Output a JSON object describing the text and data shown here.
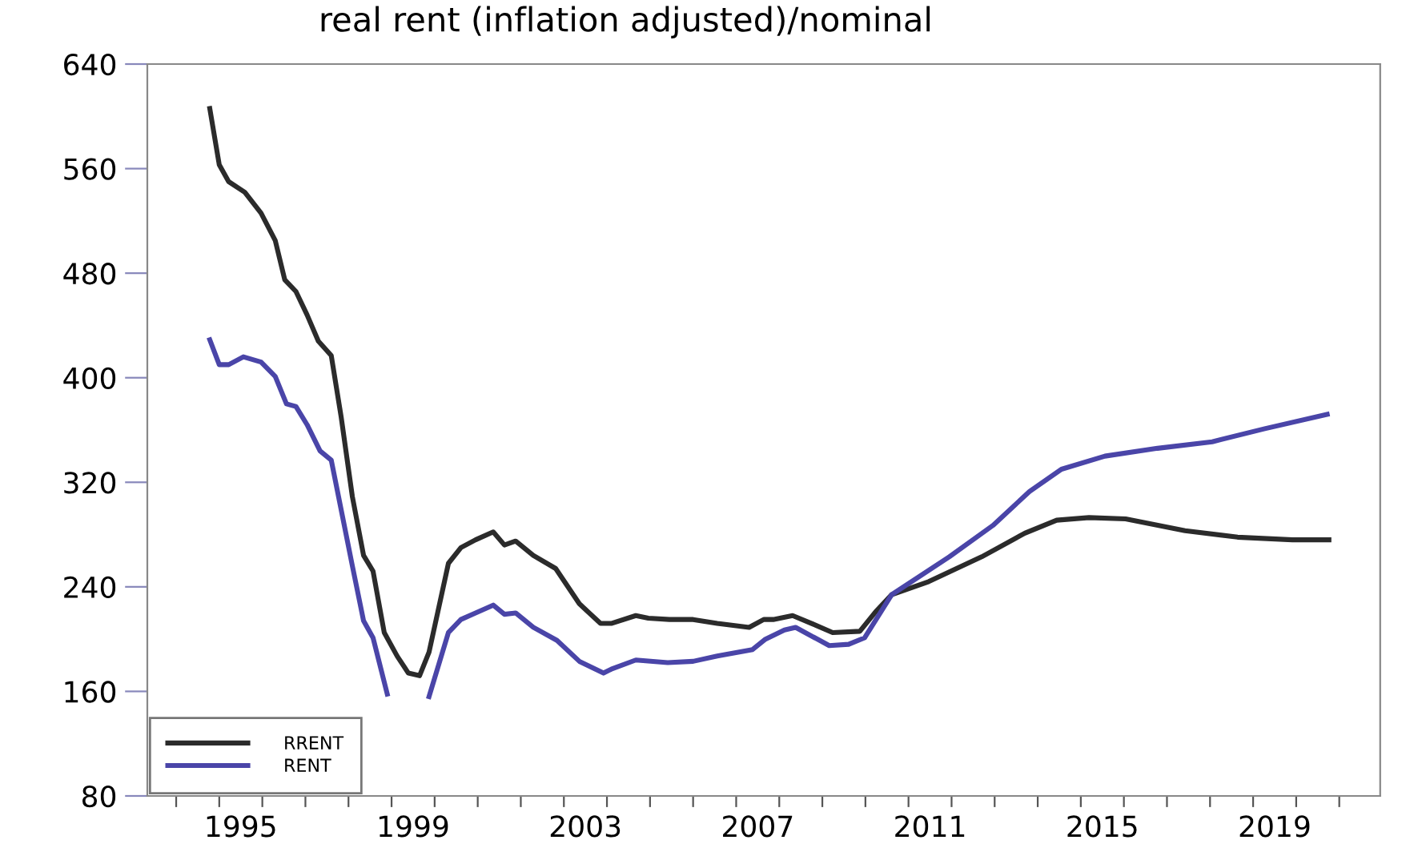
{
  "chart_data": {
    "type": "line",
    "title": "real rent (inflation adjusted)/nominal",
    "series": [
      {
        "name": "RRENT",
        "color": "#2b2b2b",
        "x": [
          1994.78,
          1995.0,
          1995.22,
          1995.59,
          1995.97,
          1996.3,
          1996.52,
          1996.78,
          1997.04,
          1997.3,
          1997.6,
          1997.83,
          1998.09,
          1998.35,
          1998.57,
          1998.83,
          1999.13,
          1999.39,
          1999.65,
          1999.87,
          2000.32,
          2000.61,
          2000.95,
          2001.36,
          2001.62,
          2001.88,
          2002.29,
          2002.81,
          2003.36,
          2003.85,
          2004.1,
          2004.67,
          2004.96,
          2005.45,
          2006.0,
          2006.56,
          2007.3,
          2007.64,
          2007.86,
          2008.31,
          2008.75,
          2009.24,
          2009.87,
          2010.24,
          2010.61,
          2011.47,
          2012.7,
          2013.7,
          2014.44,
          2015.19,
          2016.04,
          2017.42,
          2018.64,
          2019.91,
          2020.76
        ],
        "values": [
          606,
          563,
          550,
          542,
          526,
          505,
          475,
          466,
          448,
          428,
          417,
          370,
          309,
          264,
          252,
          205,
          187,
          174,
          172,
          190,
          258,
          270,
          276,
          282,
          272,
          275,
          264,
          254,
          227,
          212,
          212,
          218,
          216,
          215,
          215,
          212,
          209,
          215,
          215,
          218,
          212,
          205,
          206,
          221,
          234,
          244,
          263,
          281,
          291,
          293,
          292,
          283,
          278,
          276,
          276
        ]
      },
      {
        "name": "RENT",
        "color": "#4a45a8",
        "x": [
          1994.78,
          1995.0,
          1995.22,
          1995.56,
          1995.97,
          1996.3,
          1996.56,
          1996.78,
          1997.04,
          1997.34,
          1997.6,
          1997.83,
          1998.09,
          1998.35,
          1998.57,
          1998.9,
          1999.4,
          1999.87,
          2000.32,
          2000.61,
          2000.95,
          2001.36,
          2001.62,
          2001.88,
          2002.29,
          2002.84,
          2003.36,
          2003.92,
          2004.1,
          2004.67,
          2005.41,
          2006.0,
          2006.56,
          2007.38,
          2007.68,
          2008.12,
          2008.38,
          2009.16,
          2009.61,
          2009.98,
          2010.61,
          2011.95,
          2012.96,
          2013.81,
          2014.55,
          2015.56,
          2016.78,
          2018.05,
          2019.27,
          2020.72
        ],
        "values": [
          429,
          410,
          410,
          416,
          412,
          401,
          380,
          378,
          364,
          344,
          337,
          299,
          256,
          214,
          201,
          158,
          null,
          156,
          205,
          215,
          220,
          226,
          219,
          220,
          209,
          199,
          183,
          174,
          177,
          184,
          182,
          183,
          187,
          192,
          200,
          207,
          209,
          195,
          196,
          201,
          234,
          263,
          287,
          313,
          330,
          340,
          346,
          351,
          361,
          372
        ]
      }
    ],
    "xlim": [
      1993.33,
      2021.95
    ],
    "xticks": [
      {
        "value": 1994,
        "label": null
      },
      {
        "value": 1995,
        "label": null
      },
      {
        "value": 1995.5,
        "label": "1995"
      },
      {
        "value": 1996,
        "label": null
      },
      {
        "value": 1997,
        "label": null
      },
      {
        "value": 1998,
        "label": null
      },
      {
        "value": 1999,
        "label": null
      },
      {
        "value": 1999.5,
        "label": "1999"
      },
      {
        "value": 2000,
        "label": null
      },
      {
        "value": 2001,
        "label": null
      },
      {
        "value": 2002,
        "label": null
      },
      {
        "value": 2003,
        "label": null
      },
      {
        "value": 2003.5,
        "label": "2003"
      },
      {
        "value": 2004,
        "label": null
      },
      {
        "value": 2005,
        "label": null
      },
      {
        "value": 2006,
        "label": null
      },
      {
        "value": 2007,
        "label": null
      },
      {
        "value": 2007.5,
        "label": "2007"
      },
      {
        "value": 2008,
        "label": null
      },
      {
        "value": 2009,
        "label": null
      },
      {
        "value": 2010,
        "label": null
      },
      {
        "value": 2011,
        "label": null
      },
      {
        "value": 2011.5,
        "label": "2011"
      },
      {
        "value": 2012,
        "label": null
      },
      {
        "value": 2013,
        "label": null
      },
      {
        "value": 2014,
        "label": null
      },
      {
        "value": 2015,
        "label": null
      },
      {
        "value": 2015.5,
        "label": "2015"
      },
      {
        "value": 2016,
        "label": null
      },
      {
        "value": 2017,
        "label": null
      },
      {
        "value": 2018,
        "label": null
      },
      {
        "value": 2019,
        "label": null
      },
      {
        "value": 2019.5,
        "label": "2019"
      },
      {
        "value": 2020,
        "label": null
      },
      {
        "value": 2021,
        "label": null
      }
    ],
    "ylim": [
      80,
      640
    ],
    "yticks": [
      80,
      160,
      240,
      320,
      400,
      480,
      560,
      640
    ],
    "grid": false,
    "legend": "bottom left",
    "line_style": "solid",
    "marker": "none"
  }
}
